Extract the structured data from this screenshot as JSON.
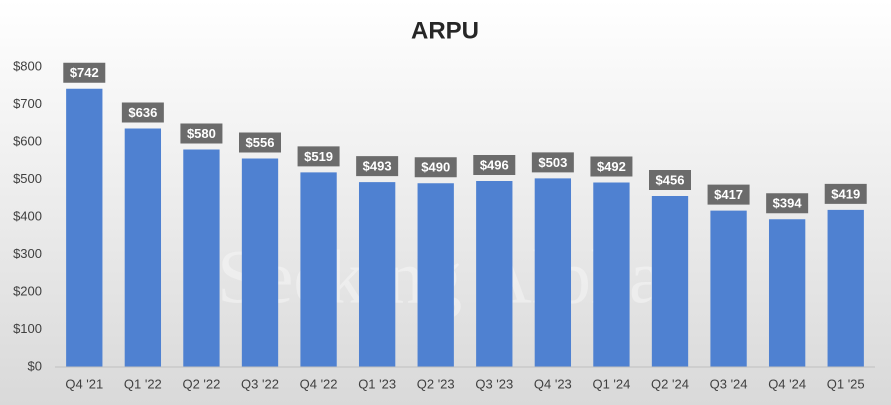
{
  "chart_data": {
    "type": "bar",
    "title": "ARPU",
    "watermark": "Seeking Alpha",
    "categories": [
      "Q4 '21",
      "Q1 '22",
      "Q2 '22",
      "Q3 '22",
      "Q4 '22",
      "Q1 '23",
      "Q2 '23",
      "Q3 '23",
      "Q4 '23",
      "Q1 '24",
      "Q2 '24",
      "Q3 '24",
      "Q4 '24",
      "Q1 '25"
    ],
    "values": [
      742,
      636,
      580,
      556,
      519,
      493,
      490,
      496,
      503,
      492,
      456,
      417,
      394,
      419
    ],
    "value_labels": [
      "$742",
      "$636",
      "$580",
      "$556",
      "$519",
      "$493",
      "$490",
      "$496",
      "$503",
      "$492",
      "$456",
      "$417",
      "$394",
      "$419"
    ],
    "color": "#4f81d1",
    "ylim": [
      0,
      800
    ],
    "yticks": [
      {
        "value": 0,
        "label": "$0"
      },
      {
        "value": 100,
        "label": "$100"
      },
      {
        "value": 200,
        "label": "$200"
      },
      {
        "value": 300,
        "label": "$300"
      },
      {
        "value": 400,
        "label": "$400"
      },
      {
        "value": 500,
        "label": "$500"
      },
      {
        "value": 600,
        "label": "$600"
      },
      {
        "value": 700,
        "label": "$700"
      },
      {
        "value": 800,
        "label": "$800"
      }
    ],
    "grid": false
  }
}
